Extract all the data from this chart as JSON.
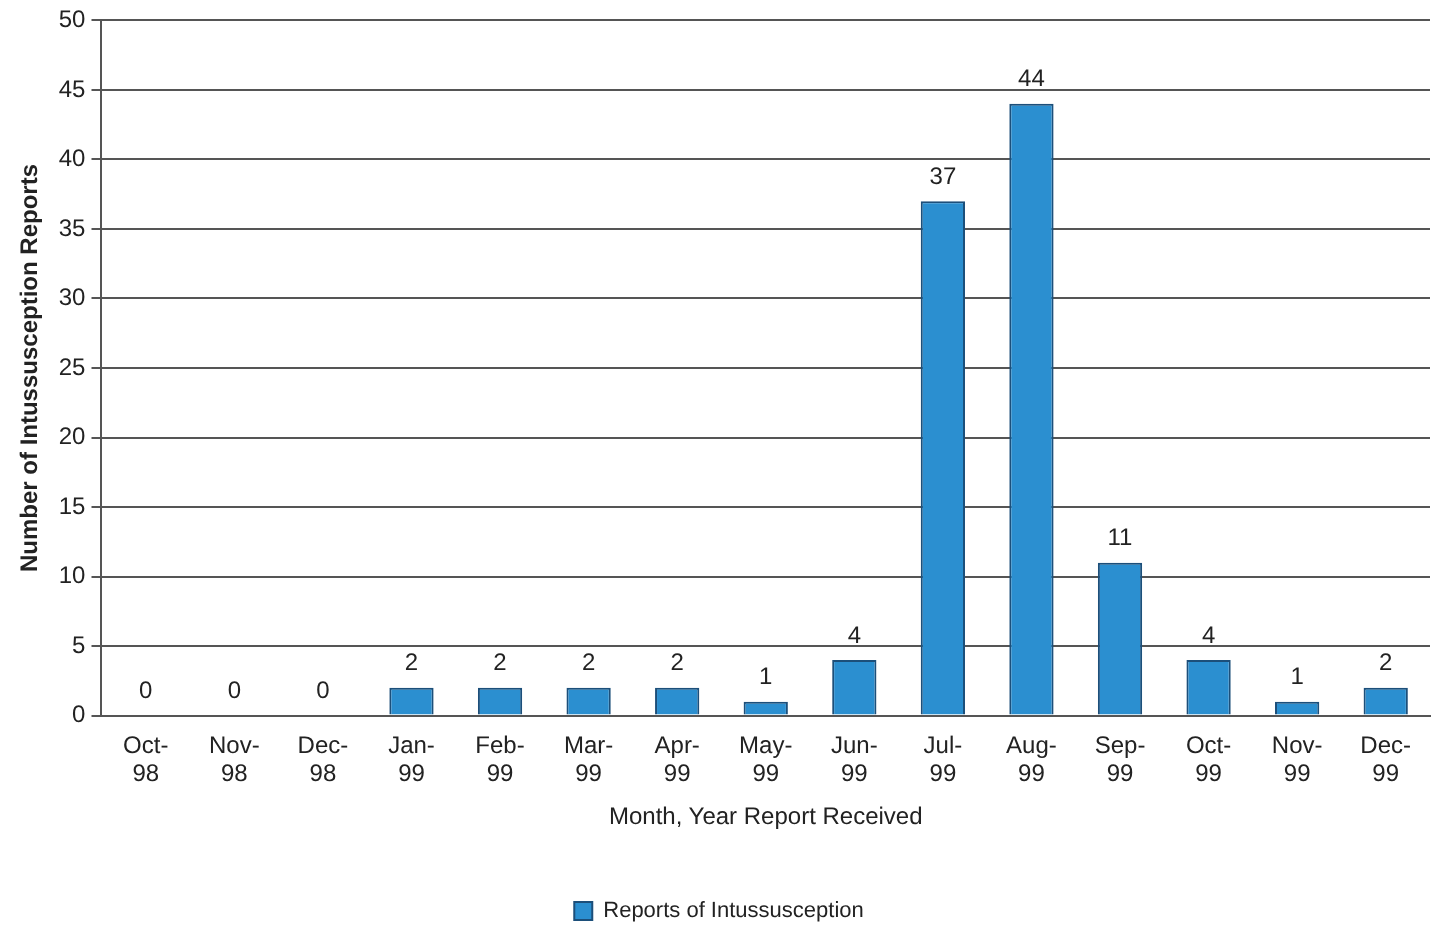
{
  "chart_data": {
    "type": "bar",
    "xlabel": "Month, Year Report Received",
    "ylabel": "Number of Intussusception Reports",
    "categories": [
      "Oct-98",
      "Nov-98",
      "Dec-98",
      "Jan-99",
      "Feb-99",
      "Mar-99",
      "Apr-99",
      "May-99",
      "Jun-99",
      "Jul-99",
      "Aug-99",
      "Sep-99",
      "Oct-99",
      "Nov-99",
      "Dec-99"
    ],
    "series": [
      {
        "name": "Reports of Intussusception",
        "color": "#2b8fd0",
        "values": [
          0,
          0,
          0,
          2,
          2,
          2,
          2,
          1,
          4,
          37,
          44,
          11,
          4,
          1,
          2
        ]
      }
    ],
    "ylim": [
      0,
      50
    ],
    "yticks": [
      0,
      5,
      10,
      15,
      20,
      25,
      30,
      35,
      40,
      45,
      50
    ],
    "grid": "y",
    "legend": "bottom",
    "data_labels": true
  }
}
